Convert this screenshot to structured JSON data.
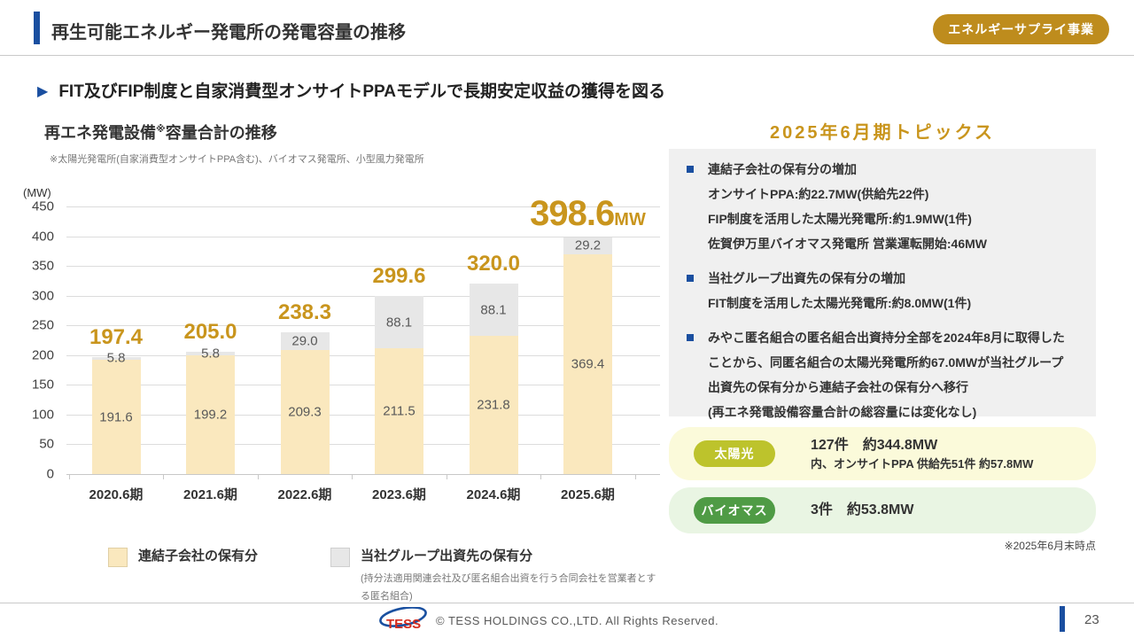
{
  "colors": {
    "navy_accent": "#1A4FA0",
    "gold_accent": "#C9951D",
    "badge_gold": "#BE8C1D",
    "bar_subsidiary": "#FAE8BE",
    "bar_group": "#E7E7E7",
    "topics_box_bg": "#F0F0F0",
    "solar_card_bg": "#FBFADA",
    "solar_badge_bg": "#BDC32C",
    "biomass_card_bg": "#E9F5E3",
    "biomass_badge_bg": "#4F9B45",
    "logo_red": "#D42B1E",
    "logo_blue": "#1A50A0"
  },
  "header": {
    "title": "再生可能エネルギー発電所の発電容量の推移",
    "badge": "エネルギーサプライ事業"
  },
  "subtitle": {
    "arrow": "▶",
    "text": "FIT及びFIP制度と自家消費型オンサイトPPAモデルで長期安定収益の獲得を図る"
  },
  "chart": {
    "title_pre": "再エネ発電設備",
    "title_sup": "※",
    "title_post": "容量合計の推移",
    "footnote": "※太陽光発電所(自家消費型オンサイトPPA含む)、バイオマス発電所、小型風力発電所",
    "unit_label": "(MW)"
  },
  "chart_data": {
    "type": "bar",
    "stacked": true,
    "title": "再エネ発電設備※容量合計の推移",
    "ylabel": "(MW)",
    "ylim": [
      0,
      450
    ],
    "ytick_step": 50,
    "grid": true,
    "categories": [
      "2020.6期",
      "2021.6期",
      "2022.6期",
      "2023.6期",
      "2024.6期",
      "2025.6期"
    ],
    "series": [
      {
        "name": "連結子会社の保有分",
        "color": "#FAE8BE",
        "values": [
          191.6,
          199.2,
          209.3,
          211.5,
          231.8,
          369.4
        ]
      },
      {
        "name": "当社グループ出資先の保有分",
        "color": "#E7E7E7",
        "values": [
          5.8,
          5.8,
          29.0,
          88.1,
          88.1,
          29.2
        ]
      }
    ],
    "totals": [
      "197.4",
      "205.0",
      "238.3",
      "299.6",
      "320.0",
      "398.6"
    ],
    "total_unit": "MW",
    "legend": [
      {
        "label": "連結子会社の保有分",
        "color": "#FAE8BE",
        "note": ""
      },
      {
        "label": "当社グループ出資先の保有分",
        "color": "#E7E7E7",
        "note": "(持分法適用関連会社及び匿名組合出資を行う合同会社を営業者とする匿名組合)"
      }
    ],
    "legend_position": "bottom"
  },
  "topics": {
    "title": "2025年6月期トピックス",
    "items": [
      {
        "heading": "連結子会社の保有分の増加",
        "lines": [
          "オンサイトPPA:約22.7MW(供給先22件)",
          "FIP制度を活用した太陽光発電所:約1.9MW(1件)",
          "佐賀伊万里バイオマス発電所 営業運転開始:46MW"
        ]
      },
      {
        "heading": "当社グループ出資先の保有分の増加",
        "lines": [
          "FIT制度を活用した太陽光発電所:約8.0MW(1件)"
        ]
      },
      {
        "heading": "みやこ匿名組合の匿名組合出資持分全部を2024年8月に取得した",
        "lines": [
          "ことから、同匿名組合の太陽光発電所約67.0MWが当社グループ",
          "出資先の保有分から連結子会社の保有分へ移行",
          "(再エネ発電設備容量合計の総容量には変化なし)"
        ]
      }
    ]
  },
  "cards": {
    "solar": {
      "badge": "太陽光",
      "line1": "127件　約344.8MW",
      "line2": "内、オンサイトPPA 供給先51件 約57.8MW"
    },
    "biomass": {
      "badge": "バイオマス",
      "line1": "3件　約53.8MW"
    }
  },
  "asof_note": "※2025年6月末時点",
  "footer": {
    "logo_text": "TESS",
    "copyright": "© TESS HOLDINGS CO.,LTD. All Rights Reserved.",
    "page": "23"
  }
}
